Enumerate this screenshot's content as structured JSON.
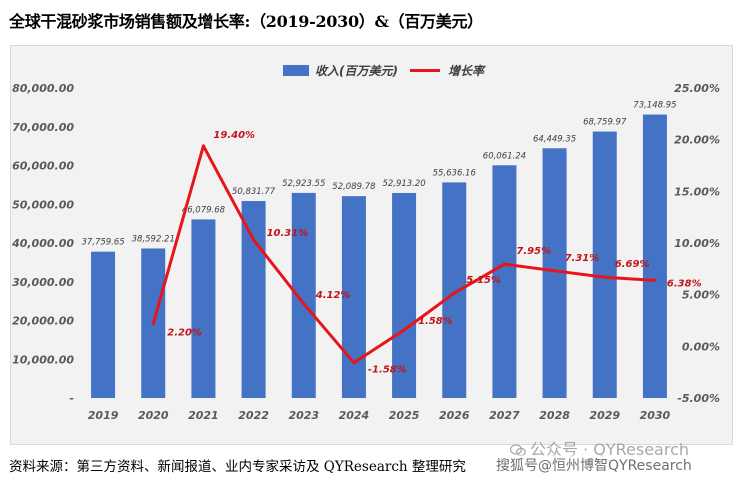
{
  "page": {
    "title": "全球干混砂浆市场销售额及增长率:（2019-2030）&（百万美元）",
    "source": "资料来源：第三方资料、新闻报道、业内专家采访及 QYResearch 整理研究",
    "watermark_top": "公众号 · QYResearch",
    "watermark_bottom": "搜狐号@恒州博智QYResearch"
  },
  "chart_data": {
    "type": "bar",
    "categories": [
      "2019",
      "2020",
      "2021",
      "2022",
      "2023",
      "2024",
      "2025",
      "2026",
      "2027",
      "2028",
      "2029",
      "2030"
    ],
    "series": [
      {
        "name": "收入(百万美元)",
        "type": "bar",
        "color": "#4472c4",
        "values": [
          37759.65,
          38592.21,
          46079.68,
          50831.77,
          52923.55,
          52089.78,
          52913.2,
          55636.16,
          60061.24,
          64449.35,
          68759.97,
          73148.95
        ],
        "labels": [
          "37,759.65",
          "38,592.21",
          "46,079.68",
          "50,831.77",
          "52,923.55",
          "52,089.78",
          "52,913.20",
          "55,636.16",
          "60,061.24",
          "64,449.35",
          "68,759.97",
          "73,148.95"
        ]
      },
      {
        "name": "增长率",
        "type": "line",
        "color": "#e8141b",
        "values": [
          null,
          2.2,
          19.4,
          10.31,
          4.12,
          -1.58,
          1.58,
          5.15,
          7.95,
          7.31,
          6.69,
          6.38
        ],
        "labels": [
          "",
          "2.20%",
          "19.40%",
          "10.31%",
          "4.12%",
          "-1.58%",
          "1.58%",
          "5.15%",
          "7.95%",
          "7.31%",
          "6.69%",
          "6.38%"
        ]
      }
    ],
    "y_left": {
      "min": 0,
      "max": 80000,
      "ticks": [
        "-",
        "10,000.00",
        "20,000.00",
        "30,000.00",
        "40,000.00",
        "50,000.00",
        "60,000.00",
        "70,000.00",
        "80,000.00"
      ]
    },
    "y_right": {
      "min": -5,
      "max": 25,
      "ticks": [
        "-5.00%",
        "0.00%",
        "5.00%",
        "10.00%",
        "15.00%",
        "20.00%",
        "25.00%"
      ]
    },
    "legend_position": "top",
    "grid": false
  }
}
